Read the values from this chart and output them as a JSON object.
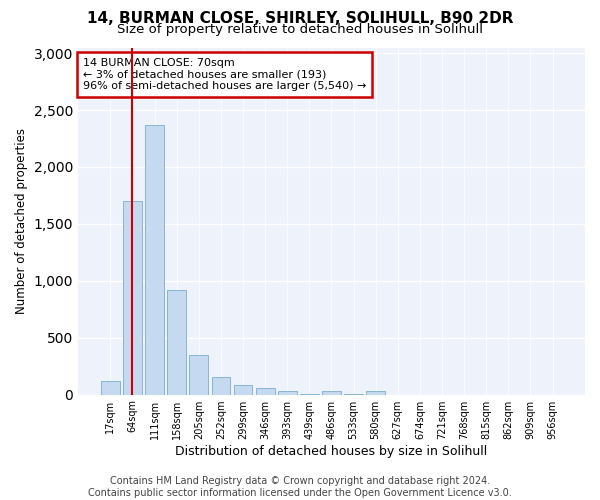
{
  "title": "14, BURMAN CLOSE, SHIRLEY, SOLIHULL, B90 2DR",
  "subtitle": "Size of property relative to detached houses in Solihull",
  "xlabel": "Distribution of detached houses by size in Solihull",
  "ylabel": "Number of detached properties",
  "categories": [
    "17sqm",
    "64sqm",
    "111sqm",
    "158sqm",
    "205sqm",
    "252sqm",
    "299sqm",
    "346sqm",
    "393sqm",
    "439sqm",
    "486sqm",
    "533sqm",
    "580sqm",
    "627sqm",
    "674sqm",
    "721sqm",
    "768sqm",
    "815sqm",
    "862sqm",
    "909sqm",
    "956sqm"
  ],
  "values": [
    120,
    1700,
    2370,
    920,
    350,
    155,
    80,
    55,
    35,
    5,
    30,
    5,
    30,
    0,
    0,
    0,
    0,
    0,
    0,
    0,
    0
  ],
  "bar_color": "#c5d9f0",
  "bar_edgecolor": "#7aadcf",
  "annotation_line1": "14 BURMAN CLOSE: 70sqm",
  "annotation_line2": "← 3% of detached houses are smaller (193)",
  "annotation_line3": "96% of semi-detached houses are larger (5,540) →",
  "annotation_box_color": "#ffffff",
  "annotation_box_edgecolor": "#cc0000",
  "vline_color": "#cc0000",
  "vline_x": 1.0,
  "ylim": [
    0,
    3050
  ],
  "yticks": [
    0,
    500,
    1000,
    1500,
    2000,
    2500,
    3000
  ],
  "bg_color": "#eef2fa",
  "fig_bg_color": "#ffffff",
  "footer_line1": "Contains HM Land Registry data © Crown copyright and database right 2024.",
  "footer_line2": "Contains public sector information licensed under the Open Government Licence v3.0.",
  "title_fontsize": 11,
  "subtitle_fontsize": 9.5,
  "footer_fontsize": 7
}
